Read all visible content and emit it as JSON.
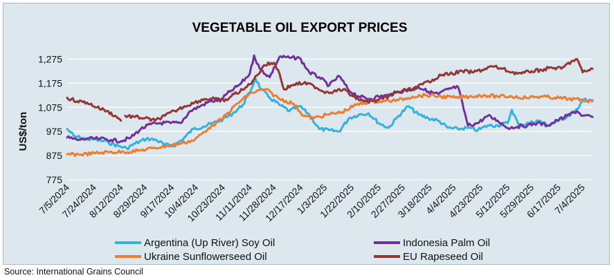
{
  "chart_data": {
    "type": "line",
    "title": "VEGETABLE OIL EXPORT PRICES",
    "ylabel": "US$/ton",
    "ylim": [
      775,
      1325
    ],
    "yticks": [
      775,
      875,
      975,
      1075,
      1175,
      1275
    ],
    "ytick_labels": [
      "775",
      "875",
      "975",
      "1,075",
      "1,175",
      "1,275"
    ],
    "xlim": [
      "7/5/2024",
      "7/11/2025"
    ],
    "xtick_labels": [
      "7/5/2024",
      "7/24/2024",
      "8/12/2024",
      "8/29/2024",
      "9/17/2024",
      "10/4/2024",
      "10/23/2024",
      "11/11/2024",
      "11/28/2024",
      "12/17/2024",
      "1/3/2025",
      "1/22/2025",
      "2/10/2025",
      "2/27/2025",
      "3/18/2025",
      "4/4/2025",
      "4/23/2025",
      "5/12/2025",
      "5/29/2025",
      "6/17/2025",
      "7/4/2025"
    ],
    "grid": "horizontal",
    "legend_position": "bottom",
    "series": [
      {
        "name": "Argentina (Up River) Soy Oil",
        "color": "#33b0e4",
        "points": [
          [
            "7/5/2024",
            985
          ],
          [
            "7/10/2024",
            955
          ],
          [
            "7/18/2024",
            945
          ],
          [
            "7/26/2024",
            940
          ],
          [
            "8/3/2024",
            930
          ],
          [
            "8/10/2024",
            915
          ],
          [
            "8/16/2024",
            905
          ],
          [
            "8/22/2024",
            925
          ],
          [
            "8/30/2024",
            945
          ],
          [
            "9/6/2024",
            940
          ],
          [
            "9/12/2024",
            920
          ],
          [
            "9/18/2024",
            915
          ],
          [
            "9/25/2024",
            945
          ],
          [
            "10/2/2024",
            985
          ],
          [
            "10/9/2024",
            995
          ],
          [
            "10/16/2024",
            1010
          ],
          [
            "10/23/2024",
            1025
          ],
          [
            "10/30/2024",
            1050
          ],
          [
            "11/6/2024",
            1085
          ],
          [
            "11/12/2024",
            1150
          ],
          [
            "11/15/2024",
            1195
          ],
          [
            "11/19/2024",
            1150
          ],
          [
            "11/25/2024",
            1115
          ],
          [
            "12/2/2024",
            1085
          ],
          [
            "12/9/2024",
            1060
          ],
          [
            "12/16/2024",
            1080
          ],
          [
            "12/23/2024",
            1045
          ],
          [
            "12/30/2024",
            985
          ],
          [
            "1/6/2025",
            980
          ],
          [
            "1/13/2025",
            975
          ],
          [
            "1/20/2025",
            1030
          ],
          [
            "1/27/2025",
            1045
          ],
          [
            "2/3/2025",
            1050
          ],
          [
            "2/10/2025",
            1010
          ],
          [
            "2/17/2025",
            990
          ],
          [
            "2/24/2025",
            1040
          ],
          [
            "3/3/2025",
            1080
          ],
          [
            "3/10/2025",
            1045
          ],
          [
            "3/17/2025",
            1030
          ],
          [
            "3/24/2025",
            1020
          ],
          [
            "3/31/2025",
            990
          ],
          [
            "4/7/2025",
            985
          ],
          [
            "4/14/2025",
            990
          ],
          [
            "4/21/2025",
            980
          ],
          [
            "4/28/2025",
            1000
          ],
          [
            "5/5/2025",
            1000
          ],
          [
            "5/12/2025",
            1010
          ],
          [
            "5/15/2025",
            1065
          ],
          [
            "5/20/2025",
            1000
          ],
          [
            "5/27/2025",
            1010
          ],
          [
            "6/3/2025",
            1020
          ],
          [
            "6/10/2025",
            1000
          ],
          [
            "6/17/2025",
            1020
          ],
          [
            "6/24/2025",
            1040
          ],
          [
            "7/1/2025",
            1070
          ],
          [
            "7/5/2025",
            1110
          ],
          [
            "7/11/2025",
            1105
          ]
        ]
      },
      {
        "name": "Indonesia Palm Oil",
        "color": "#7030a0",
        "points": [
          [
            "7/5/2024",
            950
          ],
          [
            "7/12/2024",
            940
          ],
          [
            "7/20/2024",
            945
          ],
          [
            "7/28/2024",
            945
          ],
          [
            "8/5/2024",
            940
          ],
          [
            "8/12/2024",
            935
          ],
          [
            "8/19/2024",
            950
          ],
          [
            "8/26/2024",
            985
          ],
          [
            "9/2/2024",
            1005
          ],
          [
            "9/9/2024",
            1010
          ],
          [
            "9/16/2024",
            1010
          ],
          [
            "9/23/2024",
            1010
          ],
          [
            "9/30/2024",
            1060
          ],
          [
            "10/7/2024",
            1080
          ],
          [
            "10/14/2024",
            1100
          ],
          [
            "10/21/2024",
            1105
          ],
          [
            "10/28/2024",
            1140
          ],
          [
            "11/4/2024",
            1170
          ],
          [
            "11/11/2024",
            1215
          ],
          [
            "11/14/2024",
            1290
          ],
          [
            "11/18/2024",
            1235
          ],
          [
            "11/25/2024",
            1200
          ],
          [
            "12/2/2024",
            1285
          ],
          [
            "12/9/2024",
            1280
          ],
          [
            "12/16/2024",
            1280
          ],
          [
            "12/23/2024",
            1220
          ],
          [
            "12/30/2024",
            1200
          ],
          [
            "1/6/2025",
            1165
          ],
          [
            "1/13/2025",
            1205
          ],
          [
            "1/20/2025",
            1145
          ],
          [
            "1/27/2025",
            1120
          ],
          [
            "2/3/2025",
            1110
          ],
          [
            "2/10/2025",
            1120
          ],
          [
            "2/17/2025",
            1125
          ],
          [
            "2/24/2025",
            1140
          ],
          [
            "3/3/2025",
            1145
          ],
          [
            "3/10/2025",
            1160
          ],
          [
            "3/17/2025",
            1140
          ],
          [
            "3/24/2025",
            1130
          ],
          [
            "3/31/2025",
            1150
          ],
          [
            "4/7/2025",
            1160
          ],
          [
            "4/14/2025",
            1000
          ],
          [
            "4/21/2025",
            1010
          ],
          [
            "4/28/2025",
            1040
          ],
          [
            "5/5/2025",
            1020
          ],
          [
            "5/12/2025",
            990
          ],
          [
            "5/19/2025",
            995
          ],
          [
            "5/26/2025",
            1000
          ],
          [
            "6/2/2025",
            1010
          ],
          [
            "6/9/2025",
            1000
          ],
          [
            "6/16/2025",
            1020
          ],
          [
            "6/23/2025",
            1040
          ],
          [
            "6/30/2025",
            1060
          ],
          [
            "7/4/2025",
            1040
          ],
          [
            "7/11/2025",
            1035
          ]
        ]
      },
      {
        "name": "Ukraine Sunflowerseed Oil",
        "color": "#ed7d31",
        "points": [
          [
            "7/5/2024",
            880
          ],
          [
            "7/15/2024",
            880
          ],
          [
            "7/25/2024",
            885
          ],
          [
            "8/4/2024",
            890
          ],
          [
            "8/14/2024",
            890
          ],
          [
            "8/24/2024",
            895
          ],
          [
            "9/3/2024",
            905
          ],
          [
            "9/13/2024",
            915
          ],
          [
            "9/23/2024",
            925
          ],
          [
            "10/3/2024",
            940
          ],
          [
            "10/13/2024",
            990
          ],
          [
            "10/23/2024",
            1030
          ],
          [
            "11/2/2024",
            1090
          ],
          [
            "11/12/2024",
            1135
          ],
          [
            "11/22/2024",
            1150
          ],
          [
            "12/2/2024",
            1110
          ],
          [
            "12/12/2024",
            1090
          ],
          [
            "12/19/2024",
            1040
          ],
          [
            "12/26/2024",
            1030
          ],
          [
            "1/5/2025",
            1045
          ],
          [
            "1/15/2025",
            1055
          ],
          [
            "1/25/2025",
            1085
          ],
          [
            "2/4/2025",
            1100
          ],
          [
            "2/14/2025",
            1100
          ],
          [
            "2/24/2025",
            1105
          ],
          [
            "3/6/2025",
            1120
          ],
          [
            "3/16/2025",
            1125
          ],
          [
            "3/26/2025",
            1120
          ],
          [
            "4/5/2025",
            1115
          ],
          [
            "4/15/2025",
            1120
          ],
          [
            "4/25/2025",
            1125
          ],
          [
            "5/5/2025",
            1120
          ],
          [
            "5/15/2025",
            1120
          ],
          [
            "5/25/2025",
            1115
          ],
          [
            "6/4/2025",
            1120
          ],
          [
            "6/14/2025",
            1115
          ],
          [
            "6/24/2025",
            1110
          ],
          [
            "7/4/2025",
            1105
          ],
          [
            "7/11/2025",
            1100
          ]
        ]
      },
      {
        "name": "EU Rapeseed Oil",
        "color": "#943634",
        "points": [
          [
            "7/5/2024",
            1115
          ],
          [
            "7/12/2024",
            1100
          ],
          [
            "7/19/2024",
            1095
          ],
          [
            "7/26/2024",
            1075
          ],
          [
            "8/2/2024",
            1060
          ],
          [
            "8/9/2024",
            1035
          ],
          [
            "8/12/2024",
            1020
          ],
          null,
          [
            "8/15/2024",
            1040
          ],
          [
            "8/22/2024",
            1035
          ],
          [
            "8/29/2024",
            1030
          ],
          [
            "9/5/2024",
            1020
          ],
          [
            "9/12/2024",
            1040
          ],
          [
            "9/19/2024",
            1060
          ],
          [
            "9/26/2024",
            1080
          ],
          [
            "10/3/2024",
            1095
          ],
          [
            "10/10/2024",
            1110
          ],
          [
            "10/17/2024",
            1110
          ],
          [
            "10/24/2024",
            1100
          ],
          [
            "10/31/2024",
            1130
          ],
          [
            "11/7/2024",
            1150
          ],
          [
            "11/14/2024",
            1190
          ],
          [
            "11/21/2024",
            1250
          ],
          [
            "11/28/2024",
            1260
          ],
          [
            "12/1/2024",
            1230
          ],
          [
            "12/5/2024",
            1150
          ],
          [
            "12/12/2024",
            1170
          ],
          [
            "12/19/2024",
            1175
          ],
          [
            "12/26/2024",
            1165
          ],
          [
            "1/2/2025",
            1140
          ],
          [
            "1/9/2025",
            1140
          ],
          [
            "1/16/2025",
            1150
          ],
          [
            "1/23/2025",
            1120
          ],
          [
            "1/30/2025",
            1100
          ],
          [
            "2/6/2025",
            1100
          ],
          [
            "2/13/2025",
            1110
          ],
          [
            "2/20/2025",
            1130
          ],
          [
            "2/27/2025",
            1145
          ],
          [
            "3/6/2025",
            1150
          ],
          [
            "3/13/2025",
            1170
          ],
          [
            "3/20/2025",
            1190
          ],
          [
            "3/27/2025",
            1210
          ],
          [
            "4/3/2025",
            1215
          ],
          [
            "4/10/2025",
            1225
          ],
          [
            "4/17/2025",
            1220
          ],
          [
            "4/24/2025",
            1230
          ],
          [
            "5/1/2025",
            1245
          ],
          [
            "5/8/2025",
            1235
          ],
          [
            "5/15/2025",
            1220
          ],
          [
            "5/22/2025",
            1215
          ],
          [
            "5/29/2025",
            1225
          ],
          [
            "6/5/2025",
            1230
          ],
          [
            "6/12/2025",
            1240
          ],
          [
            "6/19/2025",
            1235
          ],
          [
            "6/26/2025",
            1265
          ],
          [
            "6/30/2025",
            1275
          ],
          [
            "7/4/2025",
            1220
          ],
          [
            "7/11/2025",
            1235
          ]
        ]
      }
    ]
  },
  "source": "Source: International Grains Council"
}
